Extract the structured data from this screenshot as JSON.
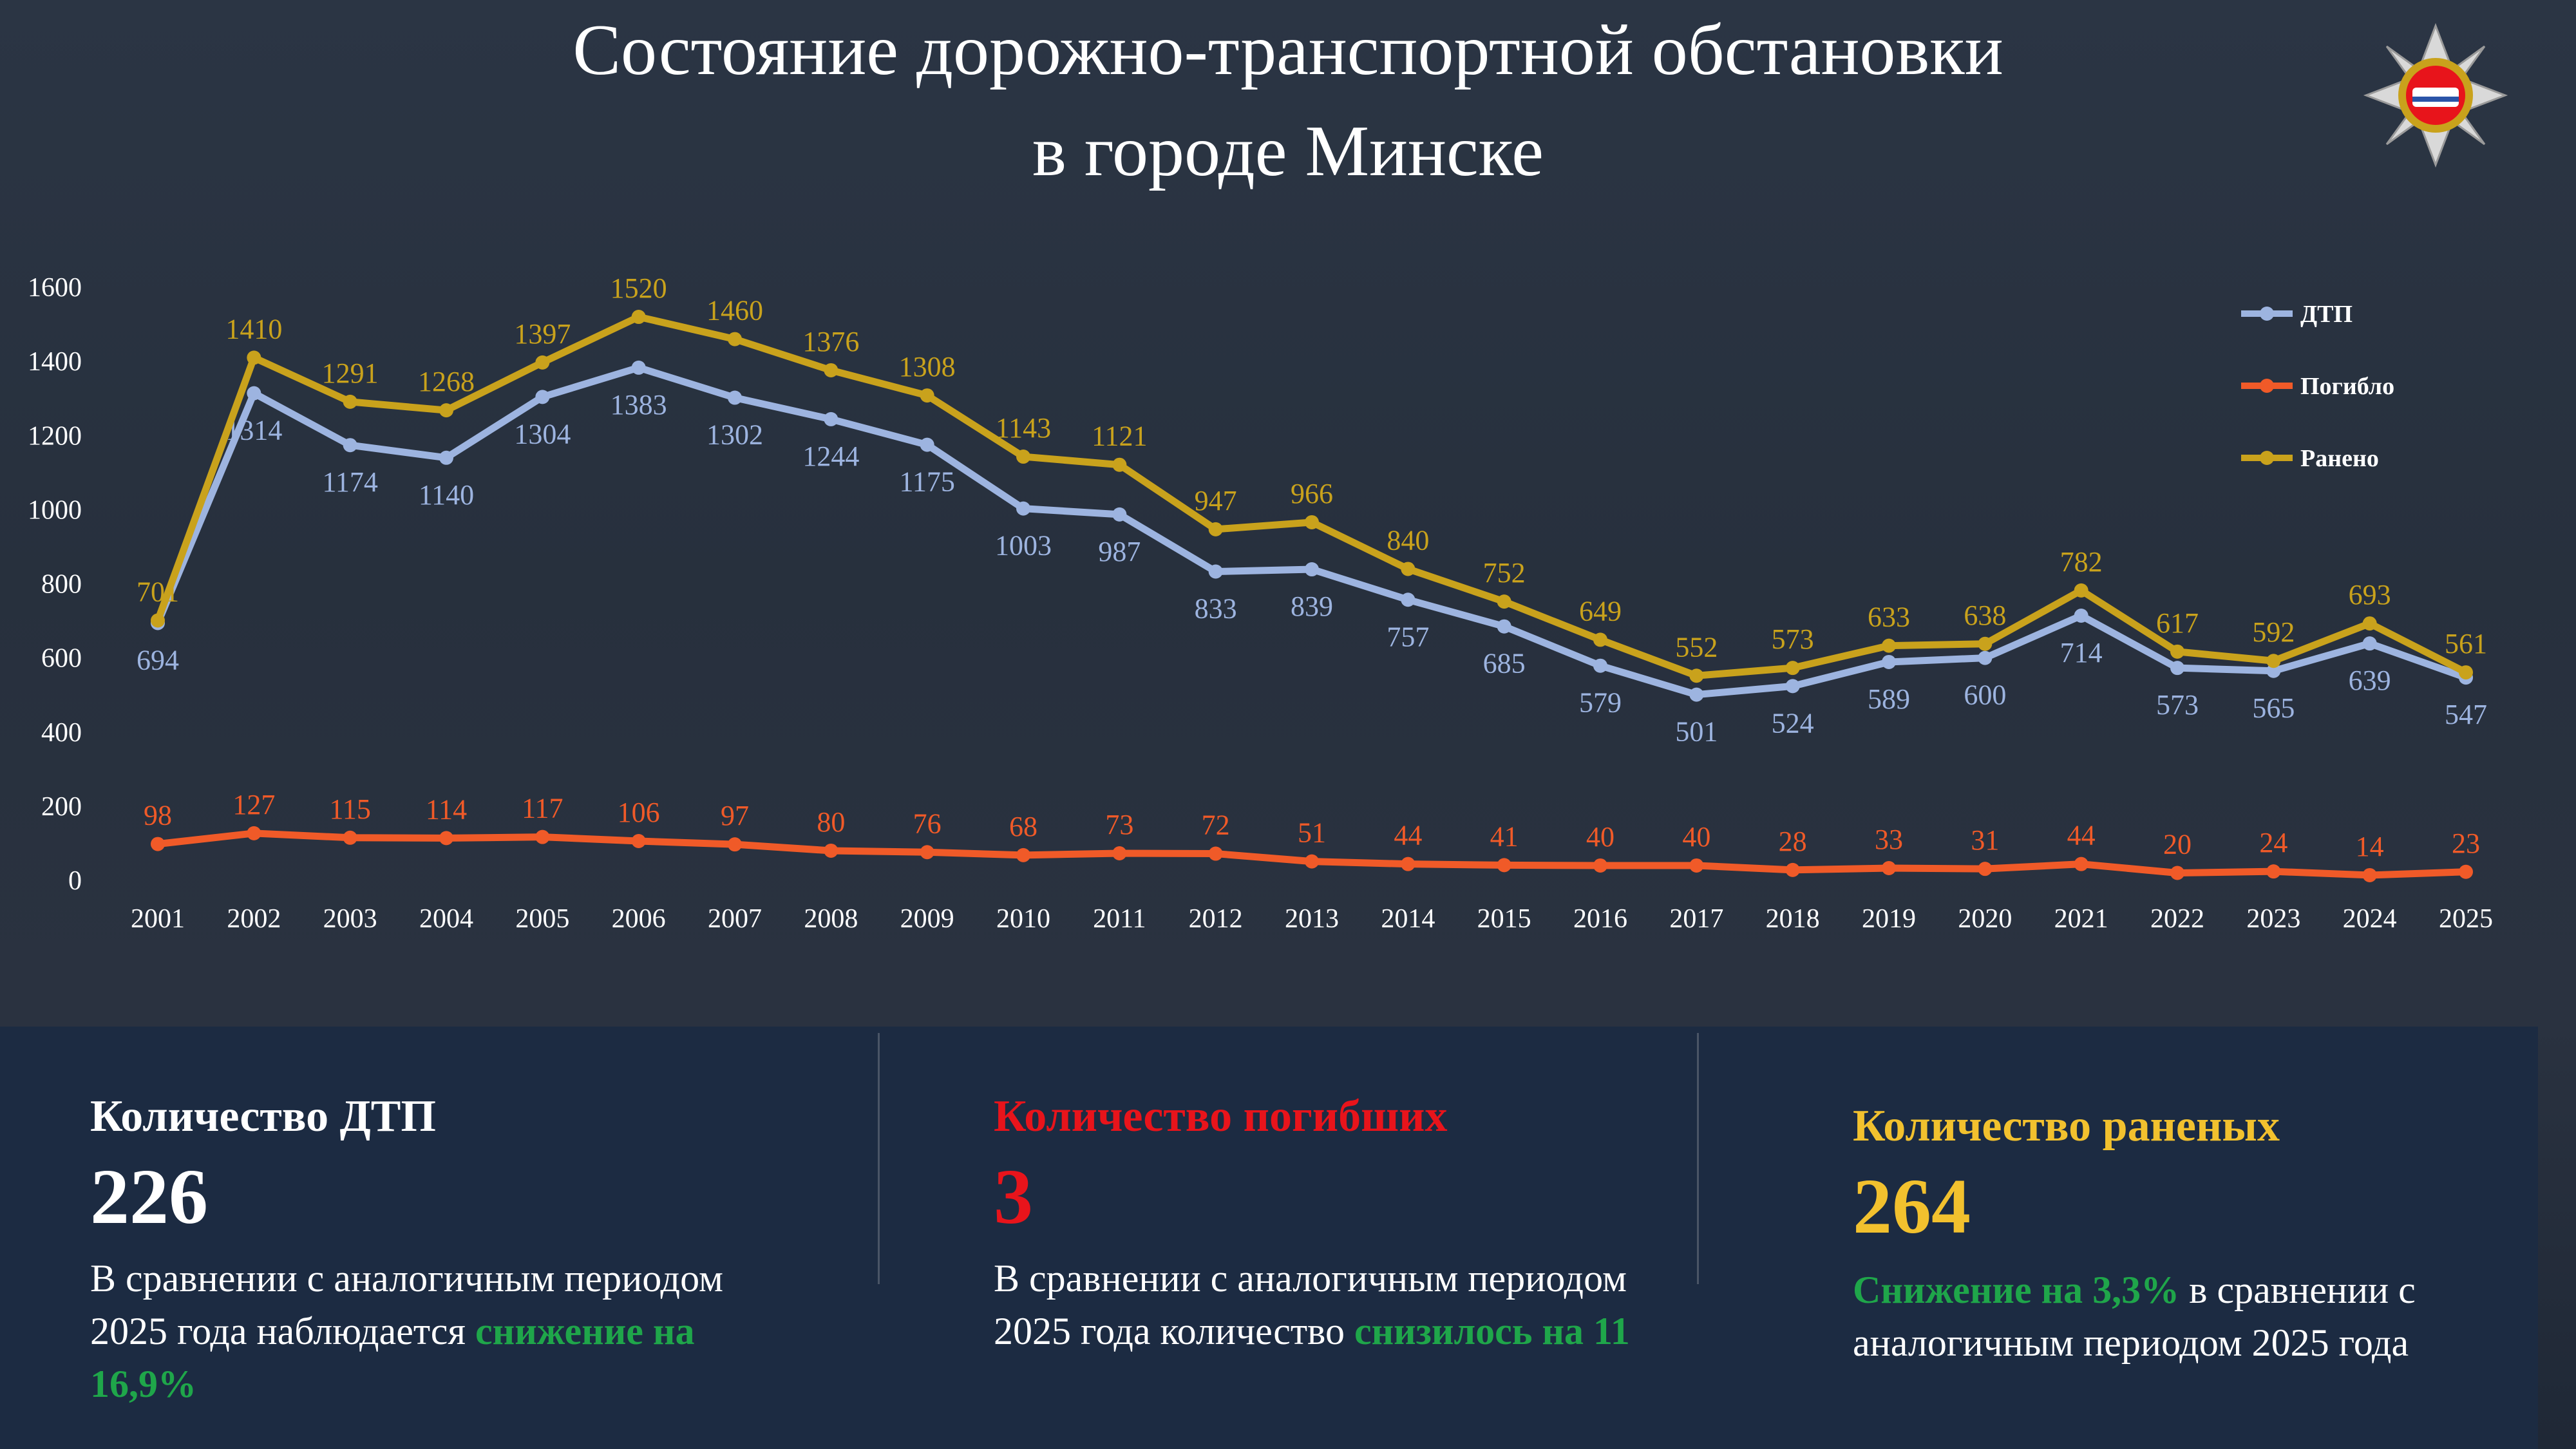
{
  "chart_data": {
    "type": "line",
    "title_line1": "Состояние дорожно-транспортной обстановки",
    "title_line2": "в городе Минске",
    "categories": [
      "2001",
      "2002",
      "2003",
      "2004",
      "2005",
      "2006",
      "2007",
      "2008",
      "2009",
      "2010",
      "2011",
      "2012",
      "2013",
      "2014",
      "2015",
      "2016",
      "2017",
      "2018",
      "2019",
      "2020",
      "2021",
      "2022",
      "2023",
      "2024",
      "2025"
    ],
    "series": [
      {
        "name": "ДТП",
        "color": "#9db4e0",
        "values": [
          694,
          1314,
          1174,
          1140,
          1304,
          1383,
          1302,
          1244,
          1175,
          1003,
          987,
          833,
          839,
          757,
          685,
          579,
          501,
          524,
          589,
          600,
          714,
          573,
          565,
          639,
          547
        ]
      },
      {
        "name": "Погибло",
        "color": "#f05a28",
        "values": [
          98,
          127,
          115,
          114,
          117,
          106,
          97,
          80,
          76,
          68,
          73,
          72,
          51,
          44,
          41,
          40,
          40,
          28,
          33,
          31,
          44,
          20,
          24,
          14,
          23
        ]
      },
      {
        "name": "Ранено",
        "color": "#c9a21c",
        "values": [
          701,
          1410,
          1291,
          1268,
          1397,
          1520,
          1460,
          1376,
          1308,
          1143,
          1121,
          947,
          966,
          840,
          752,
          649,
          552,
          573,
          633,
          638,
          782,
          617,
          592,
          693,
          561
        ]
      }
    ],
    "ylim": [
      0,
      1600
    ],
    "yticks": [
      0,
      200,
      400,
      600,
      800,
      1000,
      1200,
      1400,
      1600
    ],
    "grid": false,
    "legend": "top-right"
  },
  "panels": [
    {
      "title": "Количество ДТП",
      "title_color": "#ffffff",
      "value": "226",
      "value_color": "#ffffff",
      "text_before": "В сравнении с аналогичным периодом 2025 года наблюдается ",
      "highlight": "снижение на 16,9%",
      "text_after": ""
    },
    {
      "title": "Количество погибших",
      "title_color": "#e8141b",
      "value": "3",
      "value_color": "#e8141b",
      "text_before": "В сравнении с аналогичным периодом 2025 года количество ",
      "highlight": "снизилось на 11",
      "text_after": ""
    },
    {
      "title": "Количество раненых",
      "title_color": "#f2c12e",
      "value": "264",
      "value_color": "#f2c12e",
      "text_before": "",
      "highlight": "Снижение на 3,3%",
      "text_after": " в сравнении с аналогичным периодом 2025 года"
    }
  ]
}
